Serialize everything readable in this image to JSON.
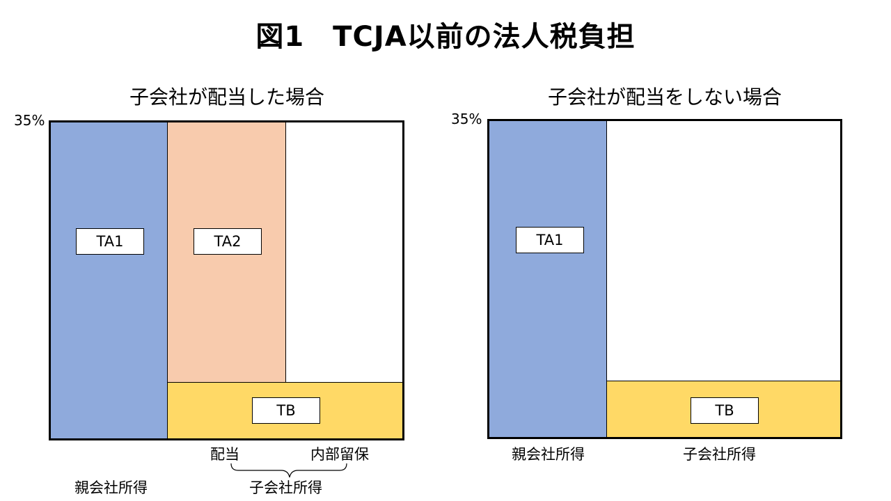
{
  "title": "図1　TCJA以前の法人税負担",
  "left_panel": {
    "title": "子会社が配当した場合",
    "y_max": "35%",
    "blocks": {
      "ta1": "TA1",
      "ta2": "TA2",
      "tb": "TB"
    },
    "labels": {
      "parent_income": "親会社所得",
      "dividend": "配当",
      "retained": "内部留保",
      "subsidiary_income": "子会社所得"
    }
  },
  "right_panel": {
    "title": "子会社が配当をしない場合",
    "y_max": "35%",
    "blocks": {
      "ta1": "TA1",
      "tb": "TB"
    },
    "labels": {
      "parent_income": "親会社所得",
      "subsidiary_income": "子会社所得"
    }
  },
  "colors": {
    "parent_tax": "#8faadc",
    "dividend_tax": "#f8cbad",
    "subsidiary_tax": "#ffd966"
  }
}
